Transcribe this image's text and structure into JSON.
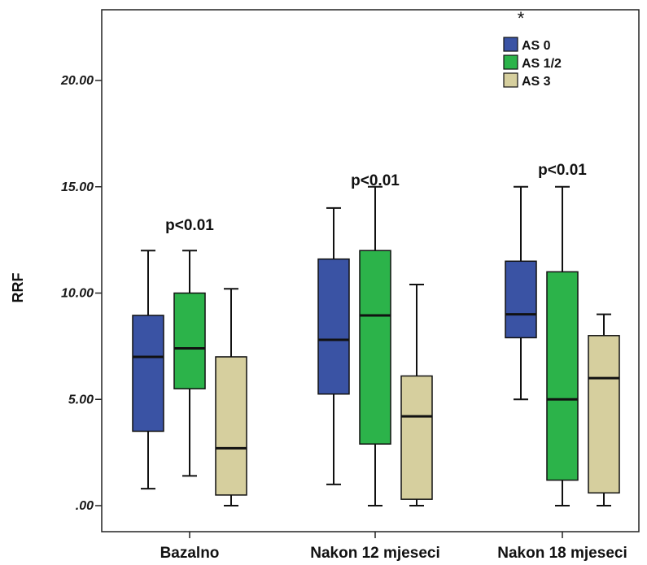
{
  "chart_data": {
    "type": "boxplot",
    "ylabel": "RRF",
    "xlabel": "",
    "ylim": [
      -1.2,
      23.6
    ],
    "yticks": [
      0,
      5,
      10,
      15,
      20
    ],
    "ytick_labels": [
      ".00",
      "5.00",
      "10.00",
      "15.00",
      "20.00"
    ],
    "categories": [
      "Bazalno",
      "Nakon 12 mjeseci",
      "Nakon 18 mjeseci"
    ],
    "series": [
      {
        "name": "AS 0",
        "color": "#3a53a4",
        "boxes": [
          {
            "min": 0.8,
            "q1": 3.5,
            "median": 7.0,
            "q3": 8.95,
            "max": 12.0
          },
          {
            "min": 1.0,
            "q1": 5.25,
            "median": 7.8,
            "q3": 11.6,
            "max": 14.0
          },
          {
            "min": 5.0,
            "q1": 7.9,
            "median": 9.0,
            "q3": 11.5,
            "max": 15.0
          }
        ]
      },
      {
        "name": "AS 1/2",
        "color": "#2cb34a",
        "boxes": [
          {
            "min": 1.4,
            "q1": 5.5,
            "median": 7.4,
            "q3": 10.0,
            "max": 12.0
          },
          {
            "min": 0.0,
            "q1": 2.9,
            "median": 8.95,
            "q3": 12.0,
            "max": 15.0
          },
          {
            "min": 0.0,
            "q1": 1.2,
            "median": 5.0,
            "q3": 11.0,
            "max": 15.0
          }
        ]
      },
      {
        "name": "AS 3",
        "color": "#d6cf9e",
        "boxes": [
          {
            "min": 0.0,
            "q1": 0.5,
            "median": 2.7,
            "q3": 7.0,
            "max": 10.2
          },
          {
            "min": 0.0,
            "q1": 0.3,
            "median": 4.2,
            "q3": 6.1,
            "max": 10.4
          },
          {
            "min": 0.0,
            "q1": 0.6,
            "median": 6.0,
            "q3": 8.0,
            "max": 9.0
          }
        ]
      }
    ],
    "outliers": [
      {
        "category": "Nakon 18 mjeseci",
        "series": "AS 0",
        "value": 23.1,
        "marker": "*"
      }
    ],
    "annotations": [
      {
        "category": "Bazalno",
        "text": "p<0.01",
        "y": 13.2
      },
      {
        "category": "Nakon 12 mjeseci",
        "text": "p<0.01",
        "y": 15.3
      },
      {
        "category": "Nakon 18 mjeseci",
        "text": "p<0.01",
        "y": 15.8
      }
    ],
    "legend": {
      "position": "top-right",
      "entries": [
        "AS 0",
        "AS 1/2",
        "AS 3"
      ]
    },
    "grid": false
  }
}
